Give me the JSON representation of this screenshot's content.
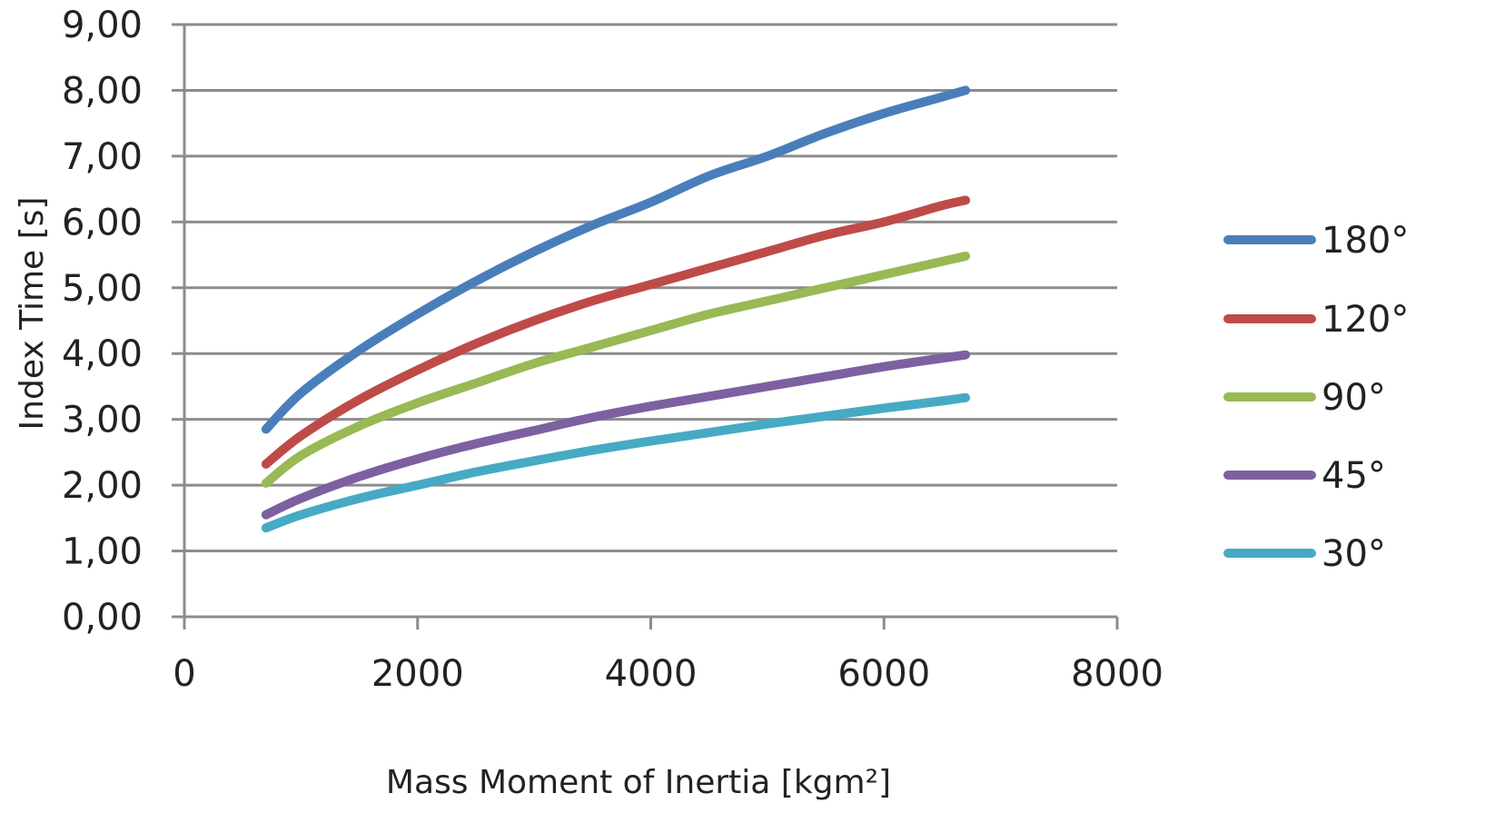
{
  "chart_data": {
    "type": "line",
    "xlabel": "Mass Moment of Inertia [kgm²]",
    "ylabel": "Index Time [s]",
    "xlim": [
      0,
      8000
    ],
    "ylim": [
      0,
      9
    ],
    "x_ticks": [
      "0",
      "2000",
      "4000",
      "6000",
      "8000"
    ],
    "y_ticks": [
      "0,00",
      "1,00",
      "2,00",
      "3,00",
      "4,00",
      "5,00",
      "6,00",
      "7,00",
      "8,00",
      "9,00"
    ],
    "grid": "horizontal",
    "legend_position": "right",
    "series": [
      {
        "name": "180°",
        "color": "#4a7ebb",
        "x": [
          700,
          1000,
          1500,
          2000,
          2500,
          3000,
          3500,
          4000,
          4500,
          5000,
          5500,
          6000,
          6500,
          6700
        ],
        "y": [
          2.85,
          3.4,
          4.05,
          4.6,
          5.1,
          5.55,
          5.95,
          6.3,
          6.7,
          7.0,
          7.35,
          7.65,
          7.9,
          8.0
        ]
      },
      {
        "name": "120°",
        "color": "#be4b48",
        "x": [
          700,
          1000,
          1500,
          2000,
          2500,
          3000,
          3500,
          4000,
          4500,
          5000,
          5500,
          6000,
          6500,
          6700
        ],
        "y": [
          2.32,
          2.75,
          3.3,
          3.75,
          4.15,
          4.5,
          4.8,
          5.05,
          5.3,
          5.55,
          5.8,
          6.0,
          6.25,
          6.33
        ]
      },
      {
        "name": "90°",
        "color": "#98b954",
        "x": [
          700,
          1000,
          1500,
          2000,
          2500,
          3000,
          3500,
          4000,
          4500,
          5000,
          5500,
          6000,
          6500,
          6700
        ],
        "y": [
          2.03,
          2.45,
          2.9,
          3.25,
          3.55,
          3.85,
          4.1,
          4.35,
          4.6,
          4.8,
          5.0,
          5.2,
          5.4,
          5.48
        ]
      },
      {
        "name": "45°",
        "color": "#7d60a0",
        "x": [
          700,
          1000,
          1500,
          2000,
          2500,
          3000,
          3500,
          4000,
          4500,
          5000,
          5500,
          6000,
          6500,
          6700
        ],
        "y": [
          1.55,
          1.8,
          2.13,
          2.4,
          2.63,
          2.83,
          3.03,
          3.2,
          3.35,
          3.5,
          3.65,
          3.8,
          3.93,
          3.98
        ]
      },
      {
        "name": "30°",
        "color": "#46aac5",
        "x": [
          700,
          1000,
          1500,
          2000,
          2500,
          3000,
          3500,
          4000,
          4500,
          5000,
          5500,
          6000,
          6500,
          6700
        ],
        "y": [
          1.35,
          1.55,
          1.8,
          2.0,
          2.2,
          2.37,
          2.53,
          2.67,
          2.8,
          2.93,
          3.05,
          3.17,
          3.28,
          3.33
        ]
      }
    ]
  }
}
